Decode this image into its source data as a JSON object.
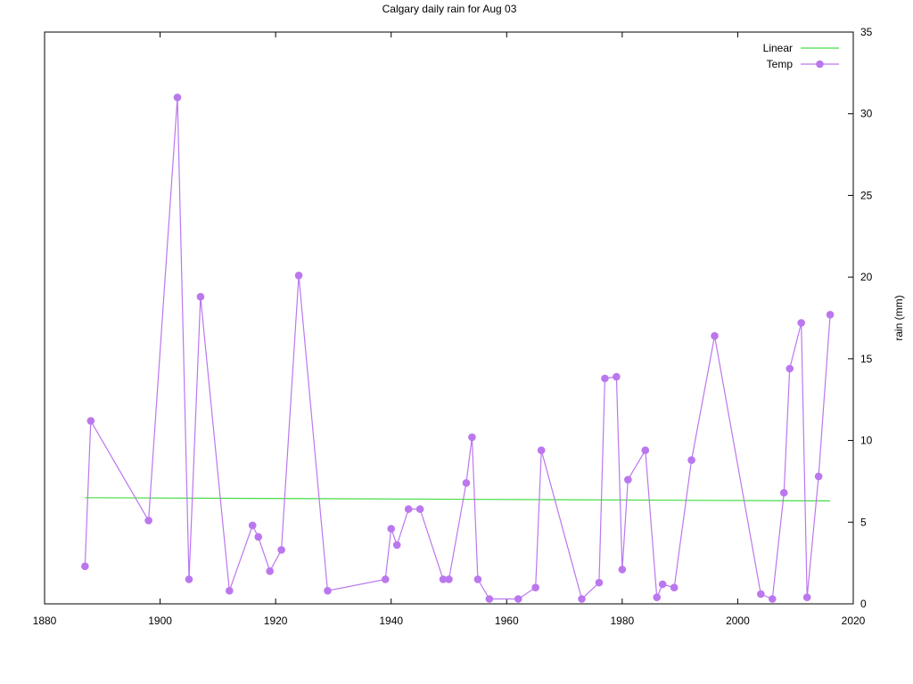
{
  "chart_data": {
    "type": "line",
    "title": "Calgary daily rain for Aug 03",
    "xlabel": "",
    "ylabel": "rain (mm)",
    "xlim": [
      1880,
      2020
    ],
    "ylim": [
      0,
      35
    ],
    "x_ticks": [
      1880,
      1900,
      1920,
      1940,
      1960,
      1980,
      2000,
      2020
    ],
    "y_ticks": [
      0,
      5,
      10,
      15,
      20,
      25,
      30,
      35
    ],
    "y_axis_side": "right",
    "grid": false,
    "legend_position": "top-right",
    "series": [
      {
        "name": "Linear",
        "kind": "line",
        "color": "#44dd44",
        "x": [
          1887,
          2016
        ],
        "y": [
          6.5,
          6.3
        ]
      },
      {
        "name": "Temp",
        "kind": "linespoints",
        "color": "#bb77ee",
        "x": [
          1887,
          1888,
          1898,
          1903,
          1905,
          1907,
          1912,
          1916,
          1917,
          1919,
          1921,
          1924,
          1929,
          1939,
          1940,
          1941,
          1943,
          1945,
          1949,
          1950,
          1953,
          1954,
          1955,
          1957,
          1962,
          1965,
          1966,
          1973,
          1976,
          1977,
          1979,
          1980,
          1981,
          1984,
          1986,
          1987,
          1989,
          1992,
          1996,
          2004,
          2006,
          2008,
          2009,
          2011,
          2012,
          2014,
          2016
        ],
        "y": [
          2.3,
          11.2,
          5.1,
          31.0,
          1.5,
          18.8,
          0.8,
          4.8,
          4.1,
          2.0,
          3.3,
          20.1,
          0.8,
          1.5,
          4.6,
          3.6,
          5.8,
          5.8,
          1.5,
          1.5,
          7.4,
          10.2,
          1.5,
          0.3,
          0.3,
          1.0,
          9.4,
          0.3,
          1.3,
          13.8,
          13.9,
          2.1,
          7.6,
          9.4,
          0.4,
          1.2,
          1.0,
          8.8,
          16.4,
          0.6,
          0.3,
          6.8,
          14.4,
          17.2,
          0.4,
          7.8,
          17.7
        ]
      }
    ]
  }
}
